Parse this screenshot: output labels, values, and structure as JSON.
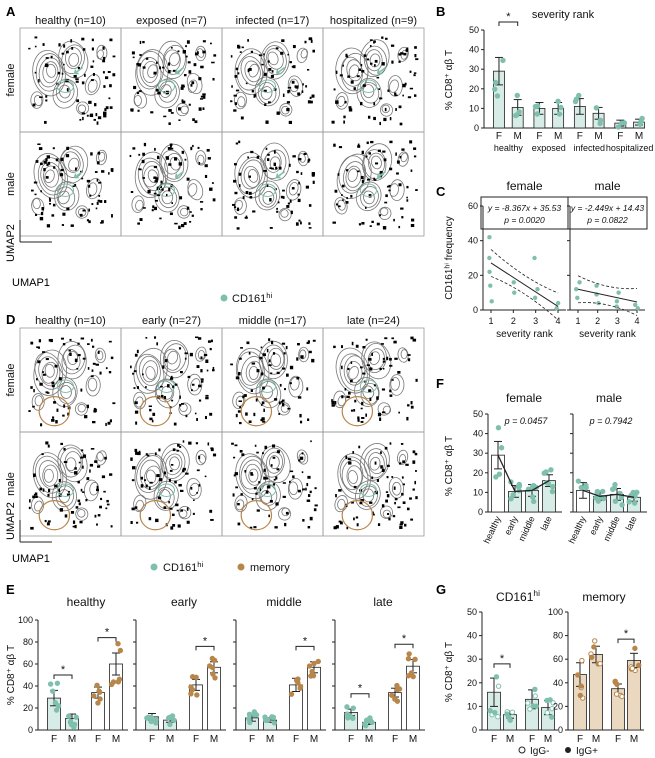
{
  "panels": {
    "A": {
      "letter": "A",
      "columns": [
        "healthy (n=10)",
        "exposed (n=7)",
        "infected (n=17)",
        "hospitalized (n=9)"
      ],
      "rows": [
        "female",
        "male"
      ],
      "axis_y": "UMAP2",
      "axis_x": "UMAP1",
      "legend": [
        {
          "label": "CD161",
          "sup": "hi",
          "color": "#7fbfae"
        }
      ]
    },
    "D": {
      "letter": "D",
      "columns": [
        "healthy (n=10)",
        "early (n=27)",
        "middle (n=17)",
        "late (n=24)"
      ],
      "rows": [
        "female",
        "male"
      ],
      "axis_y": "UMAP2",
      "axis_x": "UMAP1",
      "legend": [
        {
          "label": "CD161",
          "sup": "hi",
          "color": "#7fbfae"
        },
        {
          "label": "memory",
          "sup": "",
          "color": "#b8864b"
        }
      ]
    },
    "B": {
      "letter": "B",
      "star": "*"
    },
    "C": {
      "letter": "C"
    },
    "E": {
      "letter": "E",
      "star": "*"
    },
    "F": {
      "letter": "F"
    },
    "G": {
      "letter": "G",
      "star": "*",
      "legend_open": "IgG-",
      "legend_filled": "IgG+"
    }
  },
  "colors": {
    "teal": "#7fbfae",
    "brown": "#b8864b",
    "bar_teal": "#d7ece6",
    "bar_brown": "#ead9c0",
    "text": "#111111"
  },
  "chart_data": [
    {
      "panel": "B",
      "type": "bar",
      "title": "severity rank",
      "ylabel": "% CD8⁺ αβ T",
      "ylim": [
        0,
        50
      ],
      "yticks": [
        0,
        10,
        20,
        30,
        40,
        50
      ],
      "groups": [
        "healthy",
        "exposed",
        "infected",
        "hospitalized"
      ],
      "categories": [
        "F",
        "M",
        "F",
        "M",
        "F",
        "M",
        "F",
        "M"
      ],
      "values": [
        29,
        10.5,
        10,
        10,
        11,
        7.5,
        2.5,
        3
      ],
      "errors": [
        7,
        4,
        3,
        3,
        4,
        3,
        1.5,
        1.5
      ],
      "significance": [
        {
          "between": [
            0,
            1
          ],
          "label": "*"
        }
      ]
    },
    {
      "panel": "C",
      "type": "scatter",
      "ylabel": "CD161ʰⁱ frequency",
      "subplots": [
        {
          "title": "female",
          "xlabel": "severity rank",
          "xticks": [
            1,
            2,
            3,
            4
          ],
          "ylim": [
            0,
            60
          ],
          "yticks": [
            0,
            20,
            40,
            60
          ],
          "equation": "y = -8.367x + 35.53",
          "pvalue": "p = 0.0020",
          "fit": {
            "slope": -8.367,
            "intercept": 35.53
          },
          "points": [
            [
              1,
              42
            ],
            [
              1,
              30
            ],
            [
              1,
              22
            ],
            [
              1,
              14
            ],
            [
              1,
              5
            ],
            [
              2,
              16
            ],
            [
              2,
              10
            ],
            [
              3,
              30
            ],
            [
              3,
              12
            ],
            [
              3,
              7
            ],
            [
              4,
              4
            ],
            [
              4,
              1
            ]
          ]
        },
        {
          "title": "male",
          "xlabel": "severity rank",
          "xticks": [
            1,
            2,
            3,
            4
          ],
          "ylim": [
            0,
            60
          ],
          "yticks": [
            0,
            20,
            40,
            60
          ],
          "equation": "y = -2.449x + 14.43",
          "pvalue": "p = 0.0822",
          "fit": {
            "slope": -2.449,
            "intercept": 14.43
          },
          "points": [
            [
              1,
              16
            ],
            [
              1,
              12
            ],
            [
              1,
              7
            ],
            [
              2,
              14
            ],
            [
              2,
              9
            ],
            [
              2,
              4
            ],
            [
              3,
              10
            ],
            [
              3,
              5
            ],
            [
              3,
              2
            ],
            [
              4,
              3
            ],
            [
              4,
              1
            ]
          ]
        }
      ]
    },
    {
      "panel": "E",
      "type": "bar",
      "ylabel": "% CD8⁺ αβ T",
      "ylim": [
        0,
        100
      ],
      "yticks": [
        0,
        20,
        40,
        60,
        80,
        100
      ],
      "subplots": [
        {
          "title": "healthy",
          "categories": [
            "F",
            "M",
            "F",
            "M"
          ],
          "values": [
            29,
            10.5,
            34,
            60
          ],
          "errors": [
            7,
            4,
            5,
            10
          ],
          "colors": [
            "teal",
            "teal",
            "brown",
            "brown"
          ],
          "stars": [
            [
              0,
              1
            ],
            [
              2,
              3
            ]
          ]
        },
        {
          "title": "early",
          "categories": [
            "F",
            "M",
            "F",
            "M"
          ],
          "values": [
            12,
            9,
            41,
            57
          ],
          "errors": [
            3,
            2,
            5,
            5
          ],
          "colors": [
            "teal",
            "teal",
            "brown",
            "brown"
          ],
          "stars": [
            [
              2,
              3
            ]
          ]
        },
        {
          "title": "middle",
          "categories": [
            "F",
            "M",
            "F",
            "M"
          ],
          "values": [
            11,
            9,
            41,
            57
          ],
          "errors": [
            3,
            2,
            6,
            5
          ],
          "colors": [
            "teal",
            "teal",
            "brown",
            "brown"
          ],
          "stars": [
            [
              2,
              3
            ]
          ]
        },
        {
          "title": "late",
          "categories": [
            "F",
            "M",
            "F",
            "M"
          ],
          "values": [
            16,
            7,
            34,
            58
          ],
          "errors": [
            3,
            2,
            4,
            6
          ],
          "colors": [
            "teal",
            "teal",
            "brown",
            "brown"
          ],
          "stars": [
            [
              0,
              1
            ],
            [
              2,
              3
            ]
          ]
        }
      ]
    },
    {
      "panel": "F",
      "type": "bar",
      "ylabel": "% CD8⁺ αβ T",
      "ylim": [
        0,
        50
      ],
      "yticks": [
        0,
        10,
        20,
        30,
        40,
        50
      ],
      "subplots": [
        {
          "title": "female",
          "pvalue": "p = 0.0457",
          "categories": [
            "healthy",
            "early",
            "middle",
            "late"
          ],
          "values": [
            29,
            10.5,
            11,
            16
          ],
          "errors": [
            7,
            3,
            3,
            3
          ]
        },
        {
          "title": "male",
          "pvalue": "p = 0.7942",
          "categories": [
            "healthy",
            "early",
            "middle",
            "late"
          ],
          "values": [
            11,
            8,
            9,
            7.5
          ],
          "errors": [
            4,
            2,
            3,
            2
          ]
        }
      ]
    },
    {
      "panel": "G",
      "type": "bar",
      "ylabel": "% CD8⁺ αβ T",
      "subplots": [
        {
          "title": "CD161",
          "title_sup": "hi",
          "ylim": [
            0,
            50
          ],
          "yticks": [
            0,
            10,
            20,
            30,
            40,
            50
          ],
          "categories": [
            "F",
            "M",
            "F",
            "M"
          ],
          "values": [
            16,
            6.5,
            13,
            9.5
          ],
          "errors": [
            6,
            1.5,
            4,
            3
          ],
          "color": "teal",
          "stars": [
            [
              0,
              1
            ]
          ]
        },
        {
          "title": "memory",
          "ylim": [
            0,
            100
          ],
          "yticks": [
            0,
            20,
            40,
            60,
            80,
            100
          ],
          "categories": [
            "F",
            "M",
            "F",
            "M"
          ],
          "values": [
            47,
            64,
            35,
            59
          ],
          "errors": [
            10,
            7,
            4,
            6
          ],
          "color": "brown",
          "stars": [
            [
              2,
              3
            ]
          ]
        }
      ]
    }
  ]
}
